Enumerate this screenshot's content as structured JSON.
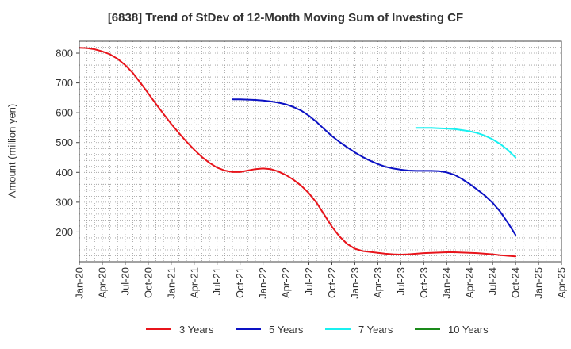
{
  "chart_data": {
    "type": "line",
    "title": "[6838]  Trend of StDev of 12-Month Moving Sum of Investing CF",
    "xlabel": "",
    "ylabel": "Amount (million yen)",
    "x_tick_labels": [
      "Jan-20",
      "Apr-20",
      "Jul-20",
      "Oct-20",
      "Jan-21",
      "Apr-21",
      "Jul-21",
      "Oct-21",
      "Jan-22",
      "Apr-22",
      "Jul-22",
      "Oct-22",
      "Jan-23",
      "Apr-23",
      "Jul-23",
      "Oct-23",
      "Jan-24",
      "Apr-24",
      "Jul-24",
      "Oct-24",
      "Jan-25",
      "Apr-25"
    ],
    "y_ticks": [
      200,
      300,
      400,
      500,
      600,
      700,
      800
    ],
    "xlim": [
      "Jan-20",
      "Apr-25"
    ],
    "ylim": [
      100,
      840
    ],
    "grid": true,
    "legend_position": "bottom",
    "series": [
      {
        "name": "3 Years",
        "color": "#e8141b",
        "points": [
          [
            "Jan-20",
            818
          ],
          [
            "Feb-20",
            817
          ],
          [
            "Mar-20",
            813
          ],
          [
            "Apr-20",
            806
          ],
          [
            "May-20",
            796
          ],
          [
            "Jun-20",
            781
          ],
          [
            "Jul-20",
            760
          ],
          [
            "Aug-20",
            733
          ],
          [
            "Sep-20",
            700
          ],
          [
            "Oct-20",
            665
          ],
          [
            "Nov-20",
            630
          ],
          [
            "Dec-20",
            596
          ],
          [
            "Jan-21",
            563
          ],
          [
            "Feb-21",
            532
          ],
          [
            "Mar-21",
            503
          ],
          [
            "Apr-21",
            476
          ],
          [
            "May-21",
            452
          ],
          [
            "Jun-21",
            432
          ],
          [
            "Jul-21",
            416
          ],
          [
            "Aug-21",
            406
          ],
          [
            "Sep-21",
            401
          ],
          [
            "Oct-21",
            401
          ],
          [
            "Nov-21",
            406
          ],
          [
            "Dec-21",
            411
          ],
          [
            "Jan-22",
            413
          ],
          [
            "Feb-22",
            411
          ],
          [
            "Mar-22",
            403
          ],
          [
            "Apr-22",
            391
          ],
          [
            "May-22",
            375
          ],
          [
            "Jun-22",
            355
          ],
          [
            "Jul-22",
            330
          ],
          [
            "Aug-22",
            298
          ],
          [
            "Sep-22",
            258
          ],
          [
            "Oct-22",
            218
          ],
          [
            "Nov-22",
            185
          ],
          [
            "Dec-22",
            160
          ],
          [
            "Jan-23",
            144
          ],
          [
            "Feb-23",
            136
          ],
          [
            "Mar-23",
            133
          ],
          [
            "Apr-23",
            130
          ],
          [
            "May-23",
            127
          ],
          [
            "Jun-23",
            125
          ],
          [
            "Jul-23",
            124
          ],
          [
            "Aug-23",
            125
          ],
          [
            "Sep-23",
            127
          ],
          [
            "Oct-23",
            129
          ],
          [
            "Nov-23",
            130
          ],
          [
            "Dec-23",
            131
          ],
          [
            "Jan-24",
            132
          ],
          [
            "Feb-24",
            132
          ],
          [
            "Mar-24",
            131
          ],
          [
            "Apr-24",
            130
          ],
          [
            "May-24",
            129
          ],
          [
            "Jun-24",
            127
          ],
          [
            "Jul-24",
            125
          ],
          [
            "Aug-24",
            122
          ],
          [
            "Sep-24",
            120
          ],
          [
            "Oct-24",
            118
          ]
        ]
      },
      {
        "name": "5 Years",
        "color": "#0c12c4",
        "points": [
          [
            "Sep-21",
            645
          ],
          [
            "Oct-21",
            645
          ],
          [
            "Nov-21",
            644
          ],
          [
            "Dec-21",
            643
          ],
          [
            "Jan-22",
            641
          ],
          [
            "Feb-22",
            638
          ],
          [
            "Mar-22",
            634
          ],
          [
            "Apr-22",
            628
          ],
          [
            "May-22",
            619
          ],
          [
            "Jun-22",
            607
          ],
          [
            "Jul-22",
            590
          ],
          [
            "Aug-22",
            569
          ],
          [
            "Sep-22",
            545
          ],
          [
            "Oct-22",
            522
          ],
          [
            "Nov-22",
            502
          ],
          [
            "Dec-22",
            484
          ],
          [
            "Jan-23",
            467
          ],
          [
            "Feb-23",
            452
          ],
          [
            "Mar-23",
            439
          ],
          [
            "Apr-23",
            428
          ],
          [
            "May-23",
            419
          ],
          [
            "Jun-23",
            413
          ],
          [
            "Jul-23",
            409
          ],
          [
            "Aug-23",
            406
          ],
          [
            "Sep-23",
            405
          ],
          [
            "Oct-23",
            405
          ],
          [
            "Nov-23",
            405
          ],
          [
            "Dec-23",
            404
          ],
          [
            "Jan-24",
            400
          ],
          [
            "Feb-24",
            392
          ],
          [
            "Mar-24",
            378
          ],
          [
            "Apr-24",
            361
          ],
          [
            "May-24",
            342
          ],
          [
            "Jun-24",
            322
          ],
          [
            "Jul-24",
            298
          ],
          [
            "Aug-24",
            268
          ],
          [
            "Sep-24",
            231
          ],
          [
            "Oct-24",
            190
          ]
        ]
      },
      {
        "name": "7 Years",
        "color": "#19f0f0",
        "points": [
          [
            "Sep-23",
            549
          ],
          [
            "Oct-23",
            549
          ],
          [
            "Nov-23",
            549
          ],
          [
            "Dec-23",
            548
          ],
          [
            "Jan-24",
            547
          ],
          [
            "Feb-24",
            545
          ],
          [
            "Mar-24",
            542
          ],
          [
            "Apr-24",
            538
          ],
          [
            "May-24",
            532
          ],
          [
            "Jun-24",
            523
          ],
          [
            "Jul-24",
            511
          ],
          [
            "Aug-24",
            495
          ],
          [
            "Sep-24",
            475
          ],
          [
            "Oct-24",
            450
          ]
        ]
      },
      {
        "name": "10 Years",
        "color": "#1a8a1a",
        "points": []
      }
    ]
  }
}
